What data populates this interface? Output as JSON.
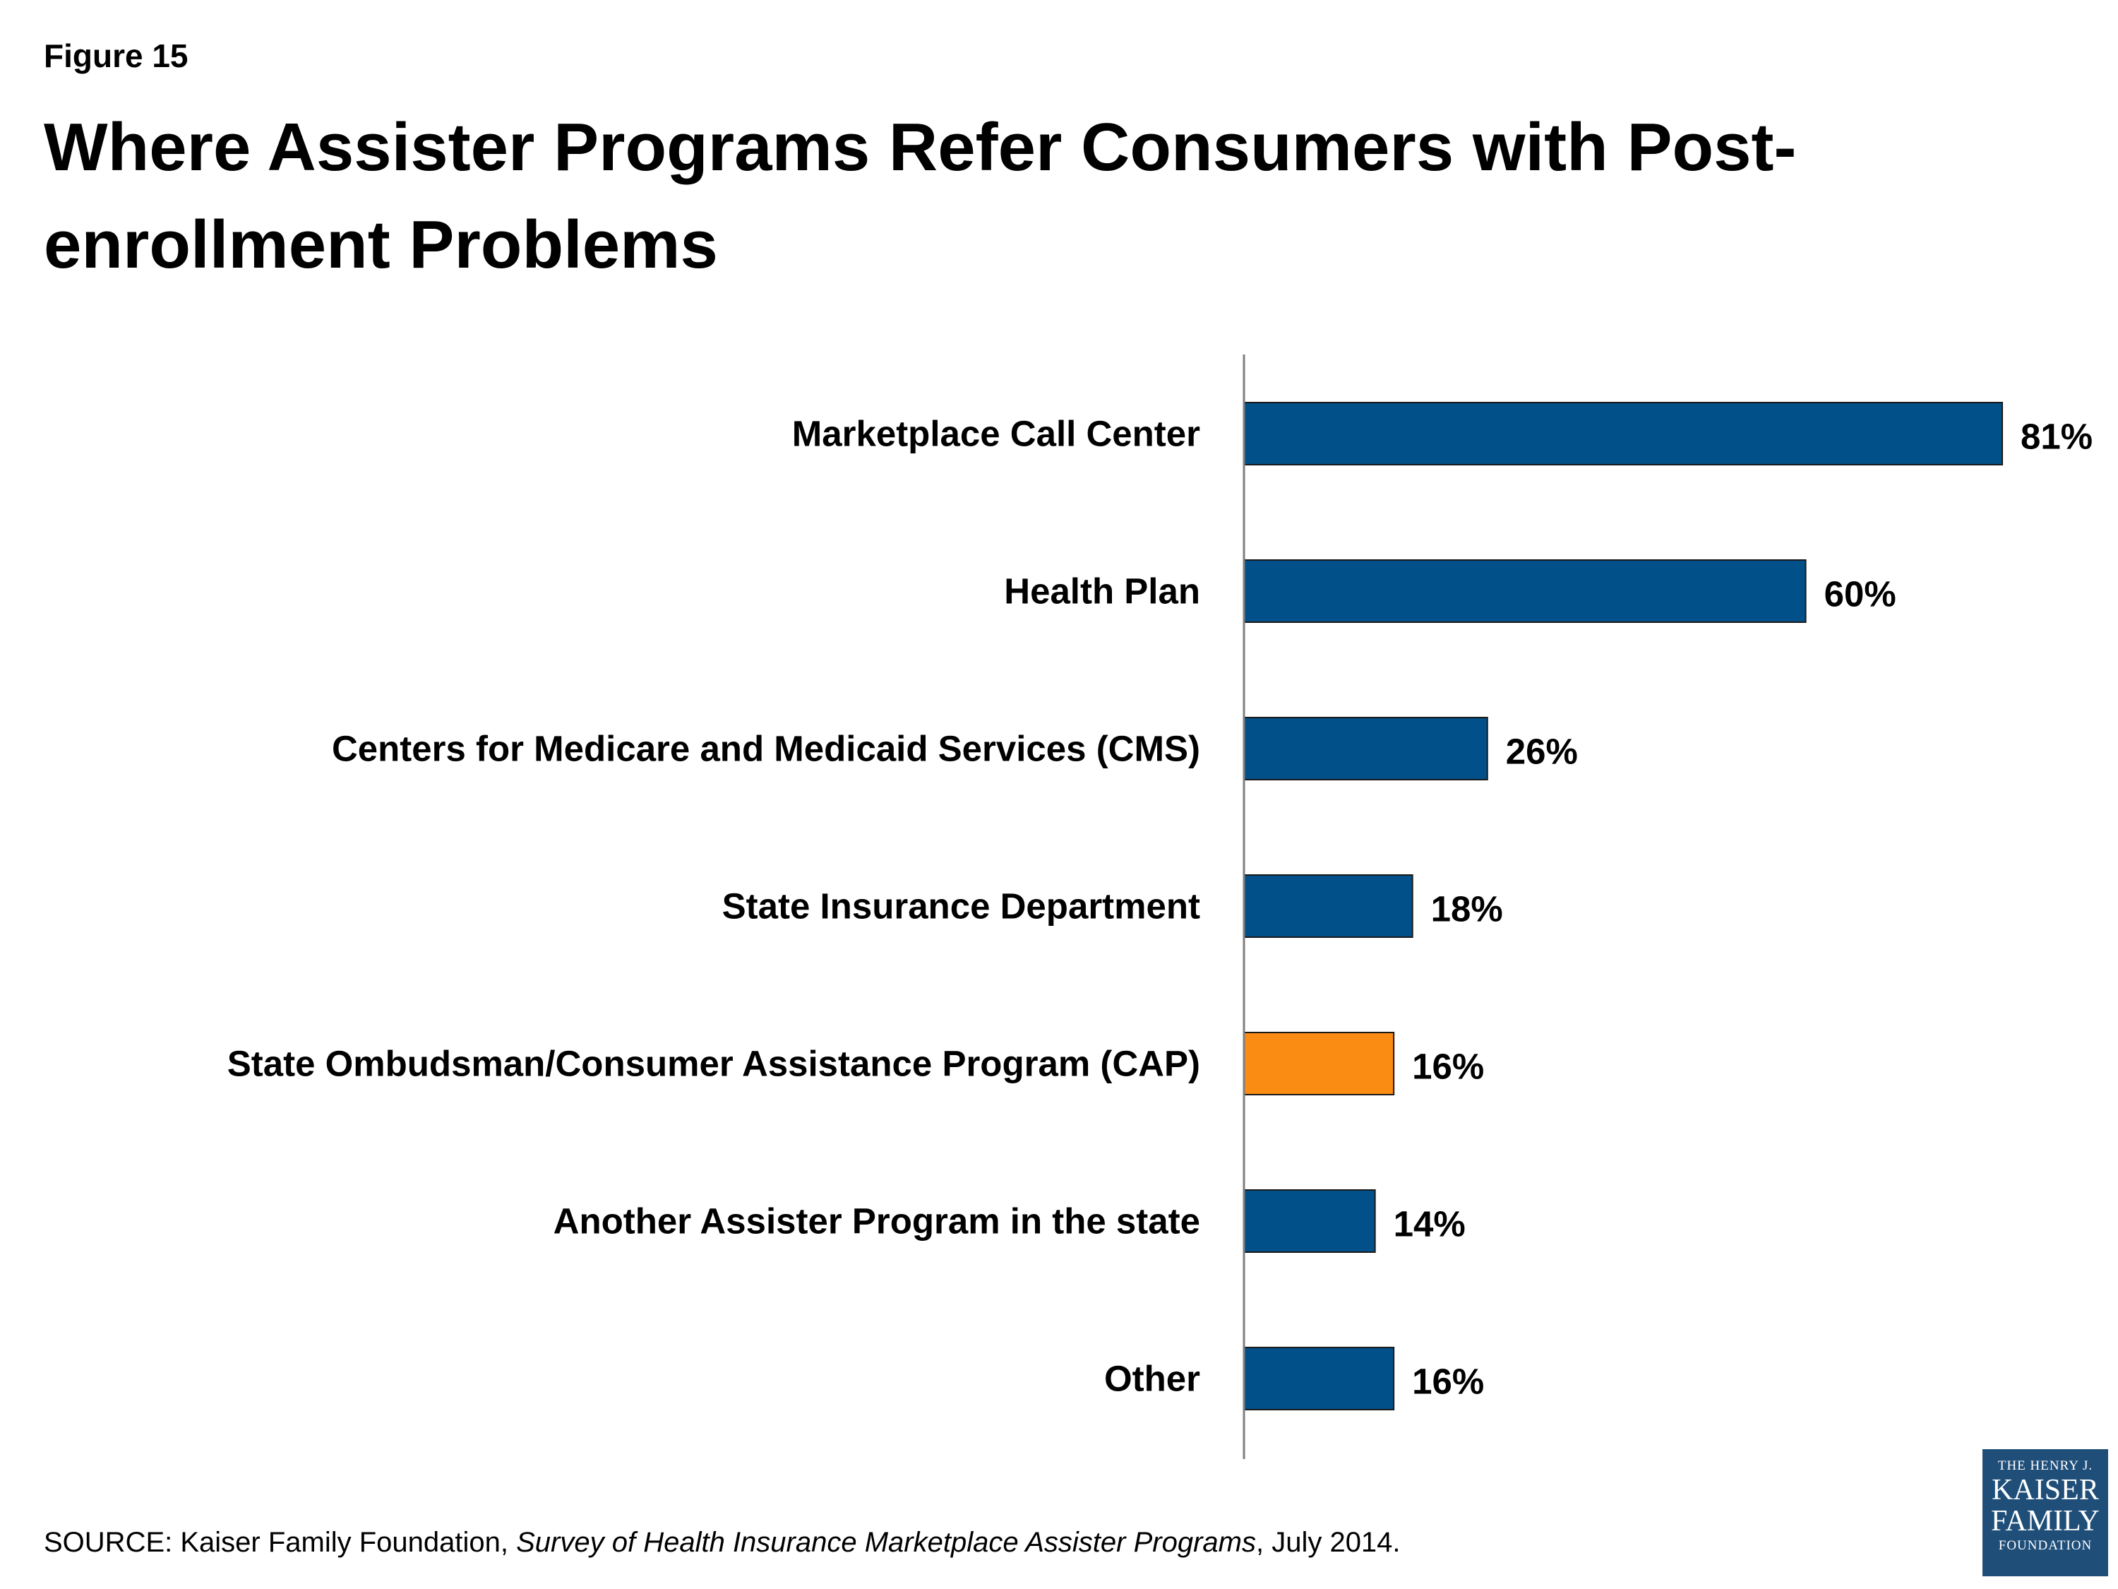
{
  "figure_label": "Figure 15",
  "title": "Where Assister Programs Refer Consumers with Post-enrollment Problems",
  "source": {
    "prefix": "SOURCE: Kaiser Family Foundation, ",
    "italic": "Survey of Health Insurance Marketplace Assister Programs",
    "suffix": ", July 2014."
  },
  "logo": {
    "line1": "THE HENRY J.",
    "line2": "KAISER",
    "line3": "FAMILY",
    "line4": "FOUNDATION"
  },
  "colors": {
    "bar_primary": "#02508a",
    "bar_highlight": "#fb8c13",
    "axis": "#7f7f7f"
  },
  "chart_data": {
    "type": "bar",
    "orientation": "horizontal",
    "categories": [
      "Marketplace Call Center",
      "Health Plan",
      "Centers for Medicare and Medicaid Services (CMS)",
      "State Insurance Department",
      "State Ombudsman/Consumer Assistance Program (CAP)",
      "Another Assister Program in the state",
      "Other"
    ],
    "values": [
      81,
      60,
      26,
      18,
      16,
      14,
      16
    ],
    "labels": [
      "81%",
      "60%",
      "26%",
      "18%",
      "16%",
      "14%",
      "16%"
    ],
    "highlight_index": 4,
    "xlim": [
      0,
      100
    ],
    "title": "",
    "xlabel": "",
    "ylabel": "",
    "grid": false
  }
}
